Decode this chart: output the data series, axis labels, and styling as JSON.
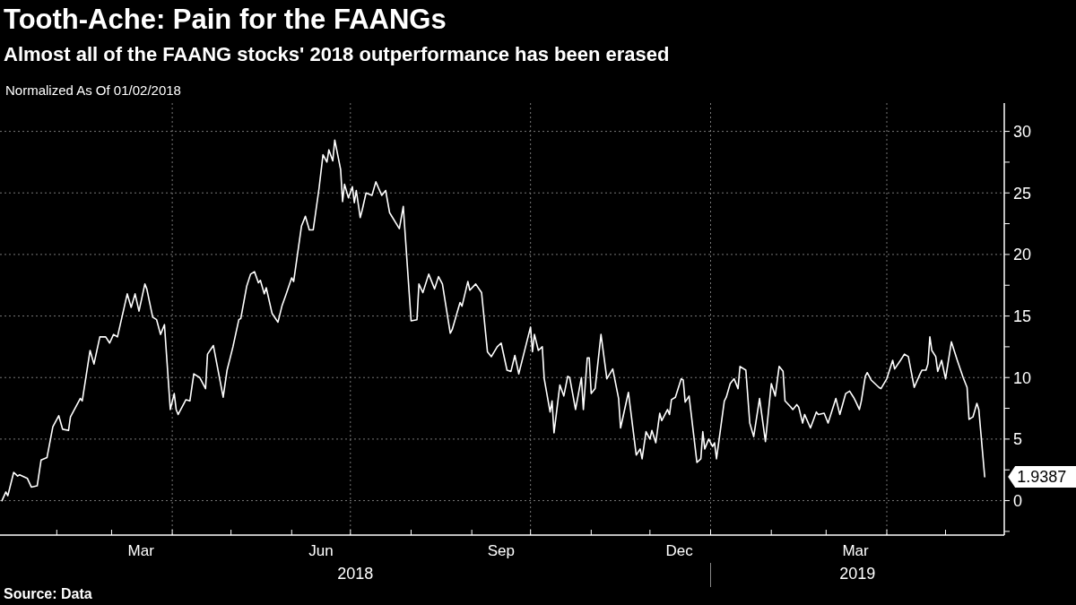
{
  "chart_data": {
    "type": "line",
    "title": "Tooth-Ache: Pain for the FAANGs",
    "subtitle": "Almost all of the FAANG stocks' 2018 outperformance has been erased",
    "annotations": [
      "Normalized As Of 01/02/2018",
      "2018",
      "2019",
      "Source: Data",
      {
        "text": "1.9387",
        "x": "2019-05-21",
        "y": 1.9387
      }
    ],
    "x": [
      "2018-01-04",
      "2018-01-06",
      "2018-01-07",
      "2018-01-10",
      "2018-01-12",
      "2018-01-13",
      "2018-01-17",
      "2018-01-19",
      "2018-01-22",
      "2018-01-24",
      "2018-01-27",
      "2018-01-30",
      "2018-02-02",
      "2018-02-04",
      "2018-02-07",
      "2018-02-08",
      "2018-02-13",
      "2018-02-14",
      "2018-02-18",
      "2018-02-20",
      "2018-02-23",
      "2018-02-26",
      "2018-02-28",
      "2018-03-02",
      "2018-03-04",
      "2018-03-09",
      "2018-03-11",
      "2018-03-13",
      "2018-03-15",
      "2018-03-18",
      "2018-03-19",
      "2018-03-22",
      "2018-03-24",
      "2018-03-26",
      "2018-03-28",
      "2018-03-31",
      "2018-04-02",
      "2018-04-03",
      "2018-04-04",
      "2018-04-08",
      "2018-04-10",
      "2018-04-12",
      "2018-04-15",
      "2018-04-18",
      "2018-04-19",
      "2018-04-22",
      "2018-04-27",
      "2018-04-29",
      "2018-05-02",
      "2018-05-05",
      "2018-05-06",
      "2018-05-09",
      "2018-05-11",
      "2018-05-13",
      "2018-05-15",
      "2018-05-16",
      "2018-05-18",
      "2018-05-19",
      "2018-05-22",
      "2018-05-25",
      "2018-05-27",
      "2018-05-29",
      "2018-06-01",
      "2018-06-02",
      "2018-06-06",
      "2018-06-08",
      "2018-06-10",
      "2018-06-12",
      "2018-06-15",
      "2018-06-17",
      "2018-06-19",
      "2018-06-20",
      "2018-06-22",
      "2018-06-23",
      "2018-06-26",
      "2018-06-27",
      "2018-06-28",
      "2018-06-30",
      "2018-07-02",
      "2018-07-03",
      "2018-07-04",
      "2018-07-06",
      "2018-07-07",
      "2018-07-09",
      "2018-07-12",
      "2018-07-14",
      "2018-07-17",
      "2018-07-19",
      "2018-07-21",
      "2018-07-26",
      "2018-07-28",
      "2018-08-01",
      "2018-08-04",
      "2018-08-05",
      "2018-08-07",
      "2018-08-10",
      "2018-08-13",
      "2018-08-15",
      "2018-08-17",
      "2018-08-21",
      "2018-08-22",
      "2018-08-26",
      "2018-08-27",
      "2018-08-30",
      "2018-08-31",
      "2018-09-03",
      "2018-09-06",
      "2018-09-09",
      "2018-09-11",
      "2018-09-14",
      "2018-09-16",
      "2018-09-19",
      "2018-09-21",
      "2018-09-23",
      "2018-09-25",
      "2018-10-01",
      "2018-10-02",
      "2018-10-03",
      "2018-10-05",
      "2018-10-07",
      "2018-10-08",
      "2018-10-11",
      "2018-10-12",
      "2018-10-13",
      "2018-10-16",
      "2018-10-18",
      "2018-10-20",
      "2018-10-21",
      "2018-10-24",
      "2018-10-27",
      "2018-10-28",
      "2018-10-30",
      "2018-10-31",
      "2018-11-01",
      "2018-11-03",
      "2018-11-06",
      "2018-11-09",
      "2018-11-12",
      "2018-11-15",
      "2018-11-16",
      "2018-11-20",
      "2018-11-24",
      "2018-11-26",
      "2018-11-27",
      "2018-11-29",
      "2018-12-01",
      "2018-12-02",
      "2018-12-04",
      "2018-12-06",
      "2018-12-07",
      "2018-12-10",
      "2018-12-11",
      "2018-12-12",
      "2018-12-14",
      "2018-12-17",
      "2018-12-18",
      "2018-12-19",
      "2018-12-21",
      "2018-12-25",
      "2018-12-27",
      "2018-12-28",
      "2018-12-29",
      "2018-12-31",
      "2019-01-02",
      "2019-01-03",
      "2019-01-04",
      "2019-01-08",
      "2019-01-09",
      "2019-01-11",
      "2019-01-13",
      "2019-01-15",
      "2019-01-16",
      "2019-01-19",
      "2019-01-21",
      "2019-01-23",
      "2019-01-26",
      "2019-01-29",
      "2019-02-01",
      "2019-02-03",
      "2019-02-05",
      "2019-02-07",
      "2019-02-08",
      "2019-02-11",
      "2019-02-12",
      "2019-02-14",
      "2019-02-15",
      "2019-02-17",
      "2019-02-18",
      "2019-02-21",
      "2019-02-24",
      "2019-02-25",
      "2019-02-28",
      "2019-03-02",
      "2019-03-06",
      "2019-03-08",
      "2019-03-11",
      "2019-03-13",
      "2019-03-15",
      "2019-03-16",
      "2019-03-18",
      "2019-03-19",
      "2019-03-21",
      "2019-03-22",
      "2019-03-24",
      "2019-03-28",
      "2019-03-29",
      "2019-04-01",
      "2019-04-04",
      "2019-04-05",
      "2019-04-08",
      "2019-04-10",
      "2019-04-12",
      "2019-04-15",
      "2019-04-18",
      "2019-04-19",
      "2019-04-21",
      "2019-04-22",
      "2019-04-23",
      "2019-04-24",
      "2019-04-26",
      "2019-04-27",
      "2019-04-29",
      "2019-05-01",
      "2019-05-04",
      "2019-05-07",
      "2019-05-10",
      "2019-05-12",
      "2019-05-13",
      "2019-05-15",
      "2019-05-17",
      "2019-05-18",
      "2019-05-21"
    ],
    "series": [
      {
        "color": "#ffffff",
        "values": [
          0,
          0.7,
          0.4,
          2.3,
          2.0,
          2.1,
          1.8,
          1.1,
          1.2,
          3.3,
          3.5,
          6.0,
          6.9,
          5.8,
          5.7,
          6.8,
          8.3,
          8.1,
          12.2,
          11.1,
          13.3,
          13.3,
          12.8,
          13.5,
          13.3,
          16.8,
          15.7,
          16.8,
          15.4,
          17.6,
          17.2,
          14.9,
          14.7,
          13.5,
          14.3,
          7.4,
          8.7,
          7.4,
          7.0,
          8.2,
          8.1,
          10.3,
          10.0,
          9.1,
          11.9,
          12.6,
          8.4,
          10.6,
          12.5,
          14.7,
          14.8,
          17.4,
          18.4,
          18.6,
          17.7,
          17.9,
          16.8,
          17.3,
          15.2,
          14.5,
          15.8,
          16.7,
          18.1,
          17.8,
          22.3,
          23.1,
          22.0,
          22.0,
          25.4,
          28.1,
          27.5,
          28.5,
          27.6,
          29.3,
          26.9,
          24.3,
          25.7,
          24.6,
          25.5,
          24.2,
          25.2,
          23.0,
          23.6,
          25.0,
          24.8,
          25.9,
          24.8,
          25.2,
          23.4,
          22.1,
          23.9,
          14.6,
          14.7,
          17.6,
          16.9,
          18.4,
          17.2,
          18.2,
          17.6,
          13.6,
          13.9,
          16.1,
          15.8,
          17.8,
          17.1,
          17.6,
          16.9,
          12.1,
          11.7,
          12.5,
          12.8,
          10.6,
          10.5,
          11.8,
          10.3,
          14.1,
          12.1,
          13.5,
          12.2,
          12.5,
          9.9,
          7.2,
          8.1,
          5.5,
          9.4,
          8.5,
          10.1,
          10.0,
          7.4,
          10.0,
          7.4,
          11.6,
          11.6,
          8.7,
          9.1,
          13.5,
          9.9,
          10.7,
          8.3,
          5.9,
          8.8,
          3.7,
          4.2,
          3.4,
          5.6,
          5.0,
          5.7,
          4.7,
          7.1,
          6.5,
          7.4,
          7.0,
          8.2,
          8.4,
          9.9,
          9.8,
          8.0,
          8.5,
          3.1,
          3.4,
          5.6,
          4.2,
          5.0,
          4.4,
          4.7,
          3.4,
          8.1,
          8.4,
          9.5,
          9.9,
          9.1,
          10.9,
          10.6,
          6.3,
          5.2,
          8.3,
          4.8,
          9.5,
          8.5,
          10.9,
          10.5,
          8.1,
          7.6,
          7.4,
          7.8,
          7.6,
          6.3,
          7.0,
          5.9,
          7.2,
          7.0,
          7.1,
          6.3,
          8.3,
          7.0,
          8.7,
          8.9,
          8.4,
          8.1,
          7.4,
          8.1,
          10.1,
          10.4,
          9.8,
          9.2,
          9.1,
          9.9,
          11.4,
          10.7,
          11.4,
          11.9,
          11.7,
          9.2,
          10.3,
          10.6,
          10.6,
          11.1,
          13.3,
          12.2,
          11.7,
          10.5,
          11.4,
          9.9,
          12.9,
          11.4,
          10.0,
          9.2,
          6.6,
          6.8,
          7.9,
          7.4,
          1.9387
        ]
      }
    ],
    "xlim": [
      "2018-01-03",
      "2019-05-31"
    ],
    "xticks": [
      {
        "value": "2018-02-01",
        "label": null
      },
      {
        "value": "2018-03-01",
        "label": null
      },
      {
        "value": "2018-03-16",
        "label": "Mar"
      },
      {
        "value": "2018-04-01",
        "label": null
      },
      {
        "value": "2018-05-01",
        "label": null
      },
      {
        "value": "2018-06-01",
        "label": null
      },
      {
        "value": "2018-06-16",
        "label": "Jun"
      },
      {
        "value": "2018-07-01",
        "label": null
      },
      {
        "value": "2018-08-01",
        "label": null
      },
      {
        "value": "2018-09-01",
        "label": null
      },
      {
        "value": "2018-09-16",
        "label": "Sep"
      },
      {
        "value": "2018-10-01",
        "label": null
      },
      {
        "value": "2018-11-01",
        "label": null
      },
      {
        "value": "2018-12-01",
        "label": null
      },
      {
        "value": "2018-12-16",
        "label": "Dec"
      },
      {
        "value": "2019-01-01",
        "label": null
      },
      {
        "value": "2019-02-01",
        "label": null
      },
      {
        "value": "2019-03-01",
        "label": null
      },
      {
        "value": "2019-03-16",
        "label": "Mar"
      },
      {
        "value": "2019-04-01",
        "label": null
      },
      {
        "value": "2019-05-01",
        "label": null
      }
    ],
    "ylim": [
      -2.8,
      32.3
    ],
    "yticks": [
      {
        "value": -2.5,
        "label": null
      },
      0,
      {
        "value": 2.5,
        "label": null
      },
      5,
      {
        "value": 7.5,
        "label": null
      },
      10,
      {
        "value": 12.5,
        "label": null
      },
      15,
      {
        "value": 17.5,
        "label": null
      },
      20,
      {
        "value": 22.5,
        "label": null
      },
      25,
      {
        "value": 27.5,
        "label": null
      },
      30
    ],
    "grid": true
  }
}
